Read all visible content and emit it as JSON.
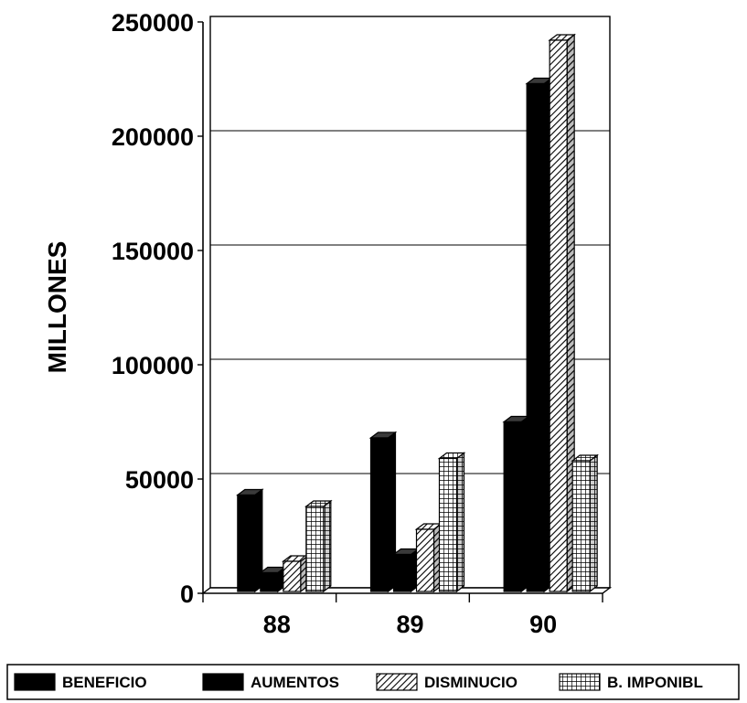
{
  "chart_data": {
    "type": "bar",
    "ylabel": "MILLONES",
    "xlabel": "",
    "ylim": [
      0,
      250000
    ],
    "yticks": [
      "0",
      "50000",
      "100000",
      "150000",
      "200000",
      "250000"
    ],
    "ytick_values": [
      0,
      50000,
      100000,
      150000,
      200000,
      250000
    ],
    "categories": [
      "88",
      "89",
      "90"
    ],
    "grid": true,
    "legend_position": "bottom",
    "series": [
      {
        "name": "BENEFICIO",
        "pattern": "solid",
        "values": [
          43000,
          68000,
          75000
        ]
      },
      {
        "name": "AUMENTOS",
        "pattern": "solid",
        "values": [
          9000,
          17000,
          223000
        ]
      },
      {
        "name": "DISMINUCIO",
        "pattern": "diagonal-hatch",
        "values": [
          14000,
          28000,
          242000
        ]
      },
      {
        "name": "B. IMPONIBL",
        "pattern": "grid-hatch",
        "values": [
          38000,
          59000,
          58000
        ]
      }
    ]
  }
}
